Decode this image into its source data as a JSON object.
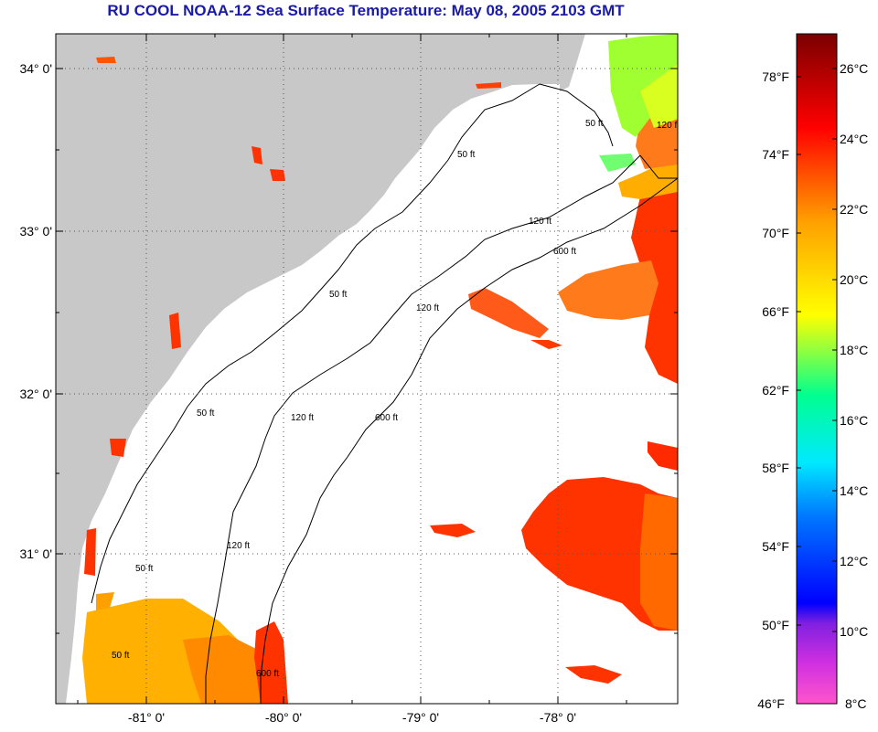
{
  "title": "RU COOL  NOAA-12  Sea Surface Temperature:  May 08, 2005 2103 GMT",
  "map": {
    "lat_labels": [
      "34° 0'",
      "33° 0'",
      "32° 0'",
      "31° 0'"
    ],
    "lon_labels": [
      "-81° 0'",
      "-80° 0'",
      "-79° 0'",
      "-78° 0'"
    ],
    "contour_labels": [
      "50 ft",
      "120 ft",
      "600 ft"
    ],
    "colors": {
      "land": "#c8c8c8",
      "ocean_nodata": "#ffffff",
      "grid": "#555555",
      "title": "#1a1aa8"
    }
  },
  "colorbar": {
    "fahrenheit_labels": [
      "78°F",
      "74°F",
      "70°F",
      "66°F",
      "62°F",
      "58°F",
      "54°F",
      "50°F",
      "46°F"
    ],
    "celsius_labels": [
      "26°C",
      "24°C",
      "22°C",
      "20°C",
      "18°C",
      "16°C",
      "14°C",
      "12°C",
      "10°C",
      "8°C"
    ],
    "range_c": [
      8,
      27
    ],
    "stops": [
      "#ff55cc",
      "#a020f0",
      "#0000ff",
      "#0090ff",
      "#00ffff",
      "#00ff80",
      "#ffff00",
      "#ffa500",
      "#ff0000",
      "#7a0000"
    ]
  }
}
